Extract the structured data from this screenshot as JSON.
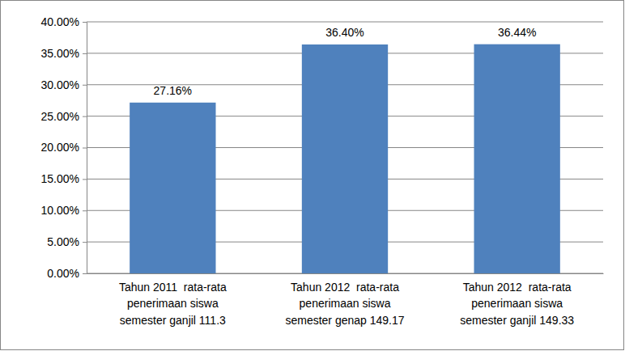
{
  "chart_data": {
    "type": "bar",
    "categories": [
      "Tahun 2011  rata-rata\npenerimaan siswa\nsemester ganjil 111.3",
      "Tahun 2012  rata-rata\npenerimaan siswa\nsemester genap 149.17",
      "Tahun 2012  rata-rata\npenerimaan siswa\nsemester ganjil 149.33"
    ],
    "values": [
      27.16,
      36.4,
      36.44
    ],
    "value_labels": [
      "27.16%",
      "36.40%",
      "36.44%"
    ],
    "color": "#4f81bd",
    "ylim": [
      0,
      40
    ],
    "yticks": [
      {
        "value": 0,
        "label": "0.00%"
      },
      {
        "value": 5,
        "label": "5.00%"
      },
      {
        "value": 10,
        "label": "10.00%"
      },
      {
        "value": 15,
        "label": "15.00%"
      },
      {
        "value": 20,
        "label": "20.00%"
      },
      {
        "value": 25,
        "label": "25.00%"
      },
      {
        "value": 30,
        "label": "30.00%"
      },
      {
        "value": 35,
        "label": "35.00%"
      },
      {
        "value": 40,
        "label": "40.00%"
      }
    ],
    "grid": true,
    "data_labels": true
  }
}
